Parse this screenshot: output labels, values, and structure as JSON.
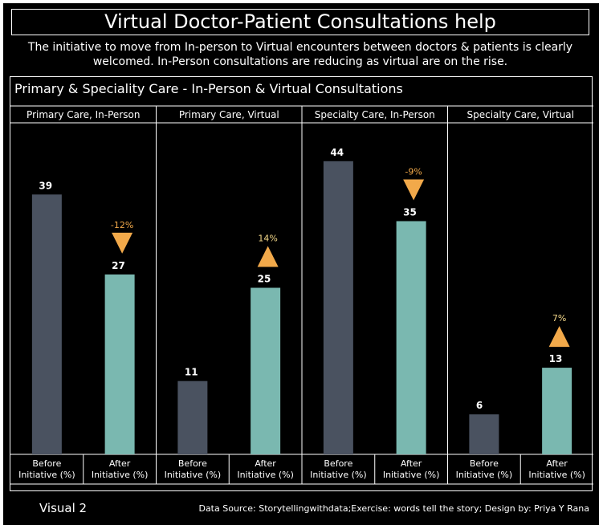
{
  "title": "Virtual Doctor-Patient Consultations help",
  "subtitle": "The initiative to move from In-person to Virtual encounters between doctors & patients is clearly welcomed. In-Person consultations are reducing as virtual are on the rise.",
  "panel_title": "Primary & Speciality Care - In-Person & Virtual Consultations",
  "footer": {
    "visual_label": "Visual 2",
    "source": "Data Source: Storytellingwithdata;Exercise: words tell the story; Design by: Priya Y Rana"
  },
  "chart_data": {
    "type": "bar",
    "ylim": [
      0,
      50
    ],
    "grid": false,
    "colors": {
      "before": "#4a5260",
      "after": "#7ab8b0",
      "change_marker": "#f2a94a",
      "change_text_up": "#f5d98a",
      "change_text_down": "#f2a94a",
      "border": "#ffffff",
      "background": "#000000"
    },
    "categories": [
      "Before Initiative (%)",
      "After Initiative (%)"
    ],
    "panels": [
      {
        "label": "Primary Care, In-Person",
        "before": 39,
        "after": 27,
        "change": "-12%",
        "direction": "down"
      },
      {
        "label": "Primary Care, Virtual",
        "before": 11,
        "after": 25,
        "change": "14%",
        "direction": "up"
      },
      {
        "label": "Specialty Care, In-Person",
        "before": 44,
        "after": 35,
        "change": "-9%",
        "direction": "down"
      },
      {
        "label": "Specialty Care, Virtual",
        "before": 6,
        "after": 13,
        "change": "7%",
        "direction": "up"
      }
    ]
  }
}
